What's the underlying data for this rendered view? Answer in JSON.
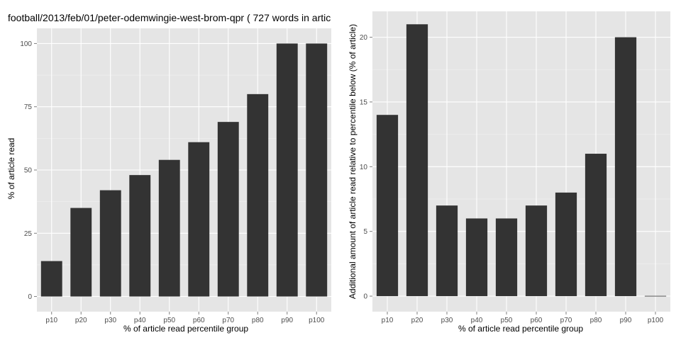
{
  "chart_data": [
    {
      "type": "bar",
      "title": "football/2013/feb/01/peter-odemwingie-west-brom-qpr ( 727 words in artic",
      "xlabel": "% of article read percentile group",
      "ylabel": "% of article read",
      "categories": [
        "p10",
        "p20",
        "p30",
        "p40",
        "p50",
        "p60",
        "p70",
        "p80",
        "p90",
        "p100"
      ],
      "values": [
        14,
        35,
        42,
        48,
        54,
        61,
        69,
        80,
        100,
        100
      ],
      "ylim": [
        -6,
        106
      ],
      "yticks": [
        0,
        25,
        50,
        75,
        100
      ],
      "ytick_labels": [
        "0",
        "25",
        "50",
        "75",
        "100"
      ],
      "grid": true,
      "bar_color": "#333333",
      "panel_background": "#e5e5e5",
      "grid_color": "#ffffff"
    },
    {
      "type": "bar",
      "title": "",
      "xlabel": "% of article read percentile group",
      "ylabel": "Additional amount of article read relative to percentile below (% of article)",
      "categories": [
        "p10",
        "p20",
        "p30",
        "p40",
        "p50",
        "p60",
        "p70",
        "p80",
        "p90",
        "p100"
      ],
      "values": [
        14,
        21,
        7,
        6,
        6,
        7,
        8,
        11,
        20,
        0
      ],
      "ylim": [
        -1.2,
        22
      ],
      "yticks": [
        0,
        5,
        10,
        15,
        20
      ],
      "ytick_labels": [
        "0",
        "5",
        "10",
        "15",
        "20"
      ],
      "grid": true,
      "bar_color": "#333333",
      "panel_background": "#e5e5e5",
      "grid_color": "#ffffff"
    }
  ]
}
